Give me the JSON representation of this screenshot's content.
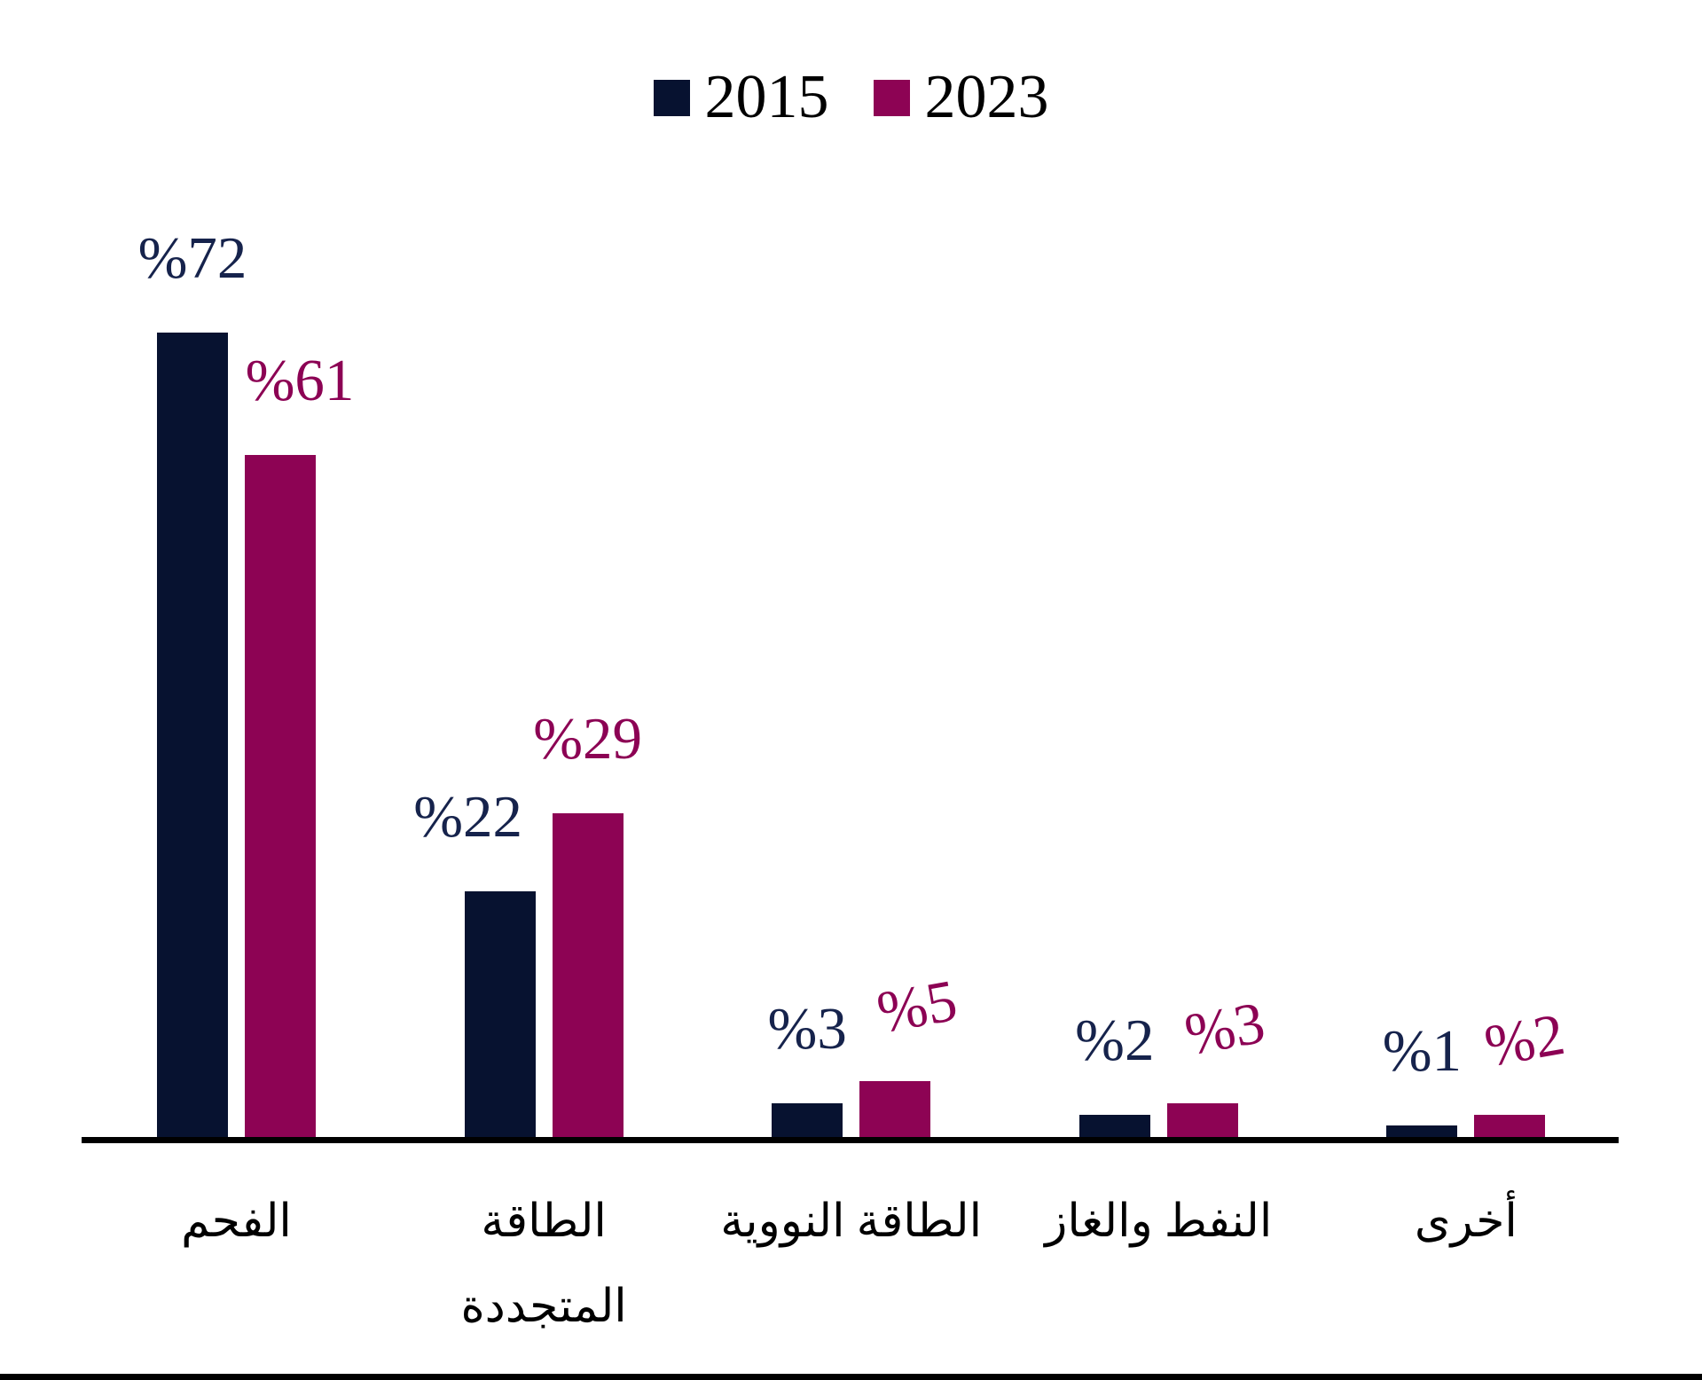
{
  "chart_data": {
    "type": "bar",
    "title": "",
    "categories": [
      "الفحم",
      "الطاقة المتجددة",
      "الطاقة النووية",
      "النفط والغاز",
      "أخرى"
    ],
    "category_order": "left-to-right",
    "series": [
      {
        "name": "2015",
        "values": [
          72,
          22,
          3,
          2,
          1
        ],
        "labels": [
          "%72",
          "%22",
          "%3",
          "%2",
          "%1"
        ],
        "color": "#071230",
        "label_color": "#16234C"
      },
      {
        "name": "2023",
        "values": [
          61,
          29,
          5,
          3,
          2
        ],
        "labels": [
          "%61",
          "%29",
          "%5",
          "%3",
          "%2"
        ],
        "color": "#8D0354",
        "label_color": "#8C0254"
      }
    ],
    "ylim": [
      0,
      80
    ],
    "grid": false,
    "y_axis_visible": false,
    "legend_position": "top",
    "axis_line_color": "#000000",
    "value_label_format": "%{value}",
    "rtl_labels": true
  }
}
